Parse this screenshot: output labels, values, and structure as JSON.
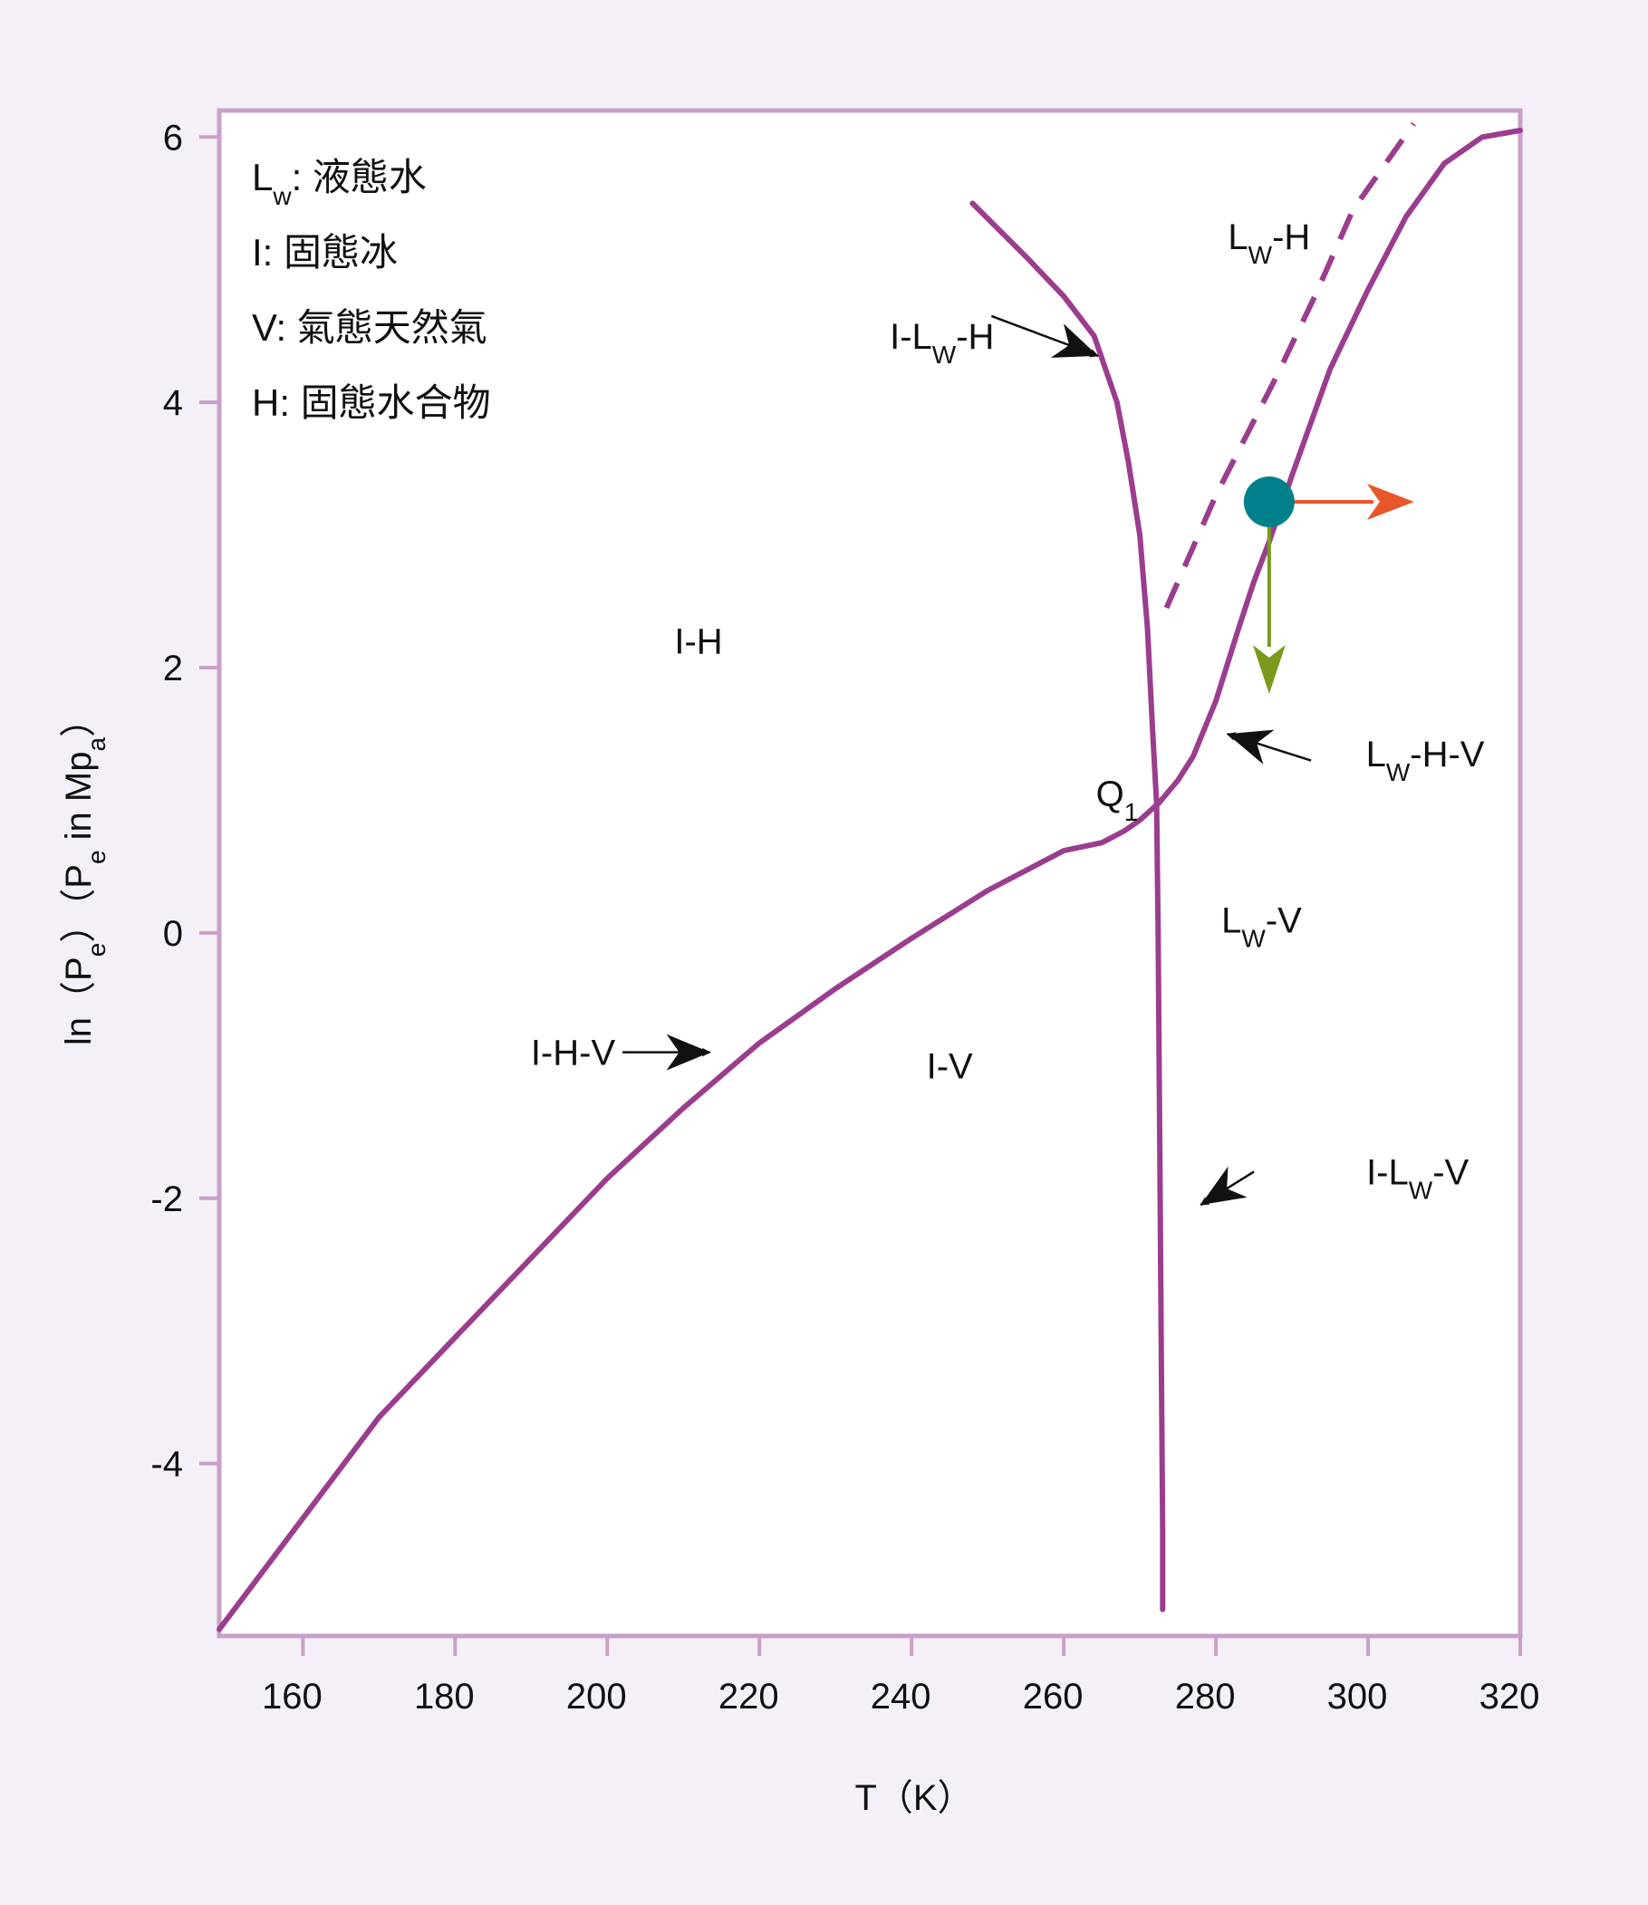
{
  "chart_data": {
    "type": "line",
    "title": "",
    "xlabel": "T（K）",
    "ylabel_parts": [
      "ln（P",
      "e",
      "）（P",
      "e",
      " in Mp",
      "a",
      "）"
    ],
    "xlim": [
      149,
      320
    ],
    "ylim": [
      -5.3,
      6.2
    ],
    "x_ticks": [
      160,
      180,
      200,
      220,
      240,
      260,
      280,
      300,
      320
    ],
    "x_tick_labels": [
      "160",
      "180",
      "200",
      "220",
      "240",
      "260",
      "280",
      "300",
      "320"
    ],
    "y_ticks": [
      -4,
      -2,
      0,
      2,
      4,
      6
    ],
    "y_tick_labels": [
      "-4",
      "-2",
      "0",
      "2",
      "4",
      "6"
    ],
    "grid": false,
    "colors": {
      "curve": "#9b3d8e",
      "frame": "#c9a0c7",
      "point": "#00808a",
      "arrow_right": "#e8562a",
      "arrow_down": "#7a9a1e",
      "pointer": "#111111"
    },
    "series": [
      {
        "id": "I-H-V_and_Lw-H-V",
        "style": "solid",
        "x": [
          149,
          170,
          180,
          200,
          210,
          220,
          230,
          240,
          250,
          260,
          265,
          268,
          270,
          272.5,
          275,
          277,
          280,
          283,
          285,
          287,
          290,
          295,
          300,
          305,
          310,
          315,
          320
        ],
        "y": [
          -5.25,
          -3.65,
          -3.05,
          -1.85,
          -1.32,
          -0.83,
          -0.42,
          -0.04,
          0.32,
          0.62,
          0.68,
          0.77,
          0.85,
          0.98,
          1.15,
          1.33,
          1.75,
          2.3,
          2.65,
          2.95,
          3.45,
          4.25,
          4.85,
          5.4,
          5.8,
          6.0,
          6.05
        ]
      },
      {
        "id": "I-Lw-H_and_I-Lw-V",
        "style": "solid",
        "x": [
          248,
          255,
          260,
          264,
          267,
          268.5,
          270,
          271,
          271.7,
          272.2,
          272.4,
          272.6,
          272.8,
          273.0,
          273.0
        ],
        "y": [
          5.5,
          5.1,
          4.8,
          4.5,
          4.0,
          3.55,
          3.0,
          2.3,
          1.5,
          0.98,
          0.0,
          -1.5,
          -3.0,
          -4.5,
          -5.1
        ]
      },
      {
        "id": "Lw-H_metastable",
        "style": "dashed",
        "x": [
          273.5,
          280,
          288,
          293,
          298,
          306
        ],
        "y": [
          2.45,
          3.3,
          4.2,
          4.8,
          5.45,
          6.1
        ]
      }
    ],
    "point": {
      "x": 287,
      "y": 3.25
    },
    "legend": {
      "placement": "top-left",
      "entries": [
        {
          "symbol": "L",
          "sub": "w",
          "desc": ": 液態水"
        },
        {
          "symbol": "I",
          "sub": "",
          "desc": ": 固態冰"
        },
        {
          "symbol": "V",
          "sub": "",
          "desc": ": 氣態天然氣"
        },
        {
          "symbol": "H",
          "sub": "",
          "desc": ": 固態水合物"
        }
      ]
    },
    "region_labels": [
      {
        "parts": [
          "L",
          "W",
          "-H"
        ],
        "x": 287,
        "y": 5.25
      },
      {
        "parts": [
          "I-H"
        ],
        "x": 212,
        "y": 2.2
      },
      {
        "parts": [
          "I-V"
        ],
        "x": 245,
        "y": -1.0
      },
      {
        "parts": [
          "L",
          "W",
          "-V"
        ],
        "x": 286,
        "y": 0.1
      }
    ],
    "annotations": [
      {
        "parts": [
          "I-L",
          "W",
          "-H"
        ],
        "label_x": 244,
        "label_y": 4.5,
        "tip_x": 264.5,
        "tip_y": 4.35,
        "tail_x": 250.5,
        "tail_y": 4.65
      },
      {
        "parts": [
          "I-H-V"
        ],
        "label_x": 195.5,
        "label_y": -0.9,
        "tip_x": 213.5,
        "tip_y": -0.9,
        "tail_x": 202,
        "tail_y": -0.9
      },
      {
        "parts": [
          "L",
          "W",
          "-H-V"
        ],
        "label_x": 307.5,
        "label_y": 1.35,
        "tip_x": 281.5,
        "tip_y": 1.5,
        "tail_x": 292.5,
        "tail_y": 1.3
      },
      {
        "parts": [
          "I-L",
          "W",
          "-V"
        ],
        "label_x": 306.5,
        "label_y": -1.8,
        "tip_x": 278,
        "tip_y": -2.05,
        "tail_x": 285,
        "tail_y": -1.8
      },
      {
        "parts": [
          "Q",
          "1"
        ],
        "label_x": 267,
        "label_y": 1.05,
        "tip_x": null,
        "tip_y": null,
        "tail_x": null,
        "tail_y": null
      }
    ]
  }
}
